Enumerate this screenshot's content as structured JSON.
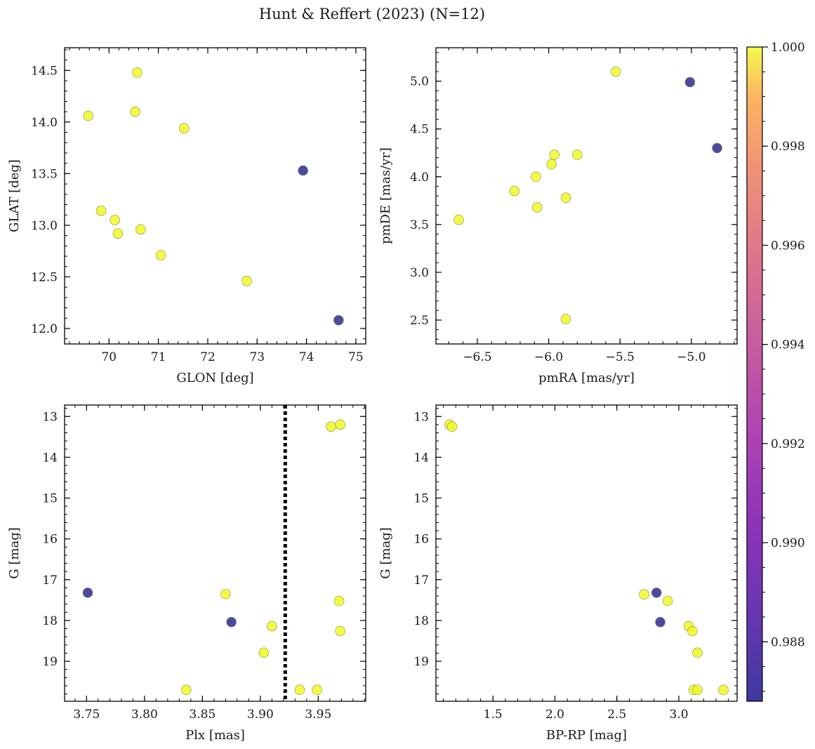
{
  "figure": {
    "title": "Hunt & Reffert (2023) (N=12)"
  },
  "colorbar": {
    "min": 0.9868,
    "max": 1.0,
    "ticks": [
      "0.988",
      "0.990",
      "0.992",
      "0.994",
      "0.996",
      "0.998",
      "1.000"
    ],
    "tick_values": [
      0.988,
      0.99,
      0.992,
      0.994,
      0.996,
      0.998,
      1.0
    ],
    "colormap": "plasma",
    "high_color": "#f0f921",
    "low_color": "#2c2c8c"
  },
  "chart_data": [
    {
      "type": "scatter",
      "id": "glon-glat",
      "xlabel": "GLON [deg]",
      "ylabel": "GLAT [deg]",
      "xlim": [
        69.1,
        75.2
      ],
      "ylim": [
        11.85,
        14.72
      ],
      "xticks": [
        70,
        71,
        72,
        73,
        74,
        75
      ],
      "yticks": [
        12.0,
        12.5,
        13.0,
        13.5,
        14.0,
        14.5
      ],
      "ytick_labels": [
        "12.0",
        "12.5",
        "13.0",
        "13.5",
        "14.0",
        "14.5"
      ],
      "y_inverted": false,
      "points": [
        {
          "x": 69.58,
          "y": 14.06,
          "p": 1.0
        },
        {
          "x": 70.57,
          "y": 14.48,
          "p": 1.0
        },
        {
          "x": 70.53,
          "y": 14.1,
          "p": 1.0
        },
        {
          "x": 71.52,
          "y": 13.94,
          "p": 1.0
        },
        {
          "x": 73.93,
          "y": 13.53,
          "p": 0.9868
        },
        {
          "x": 69.84,
          "y": 13.14,
          "p": 1.0
        },
        {
          "x": 70.12,
          "y": 13.05,
          "p": 1.0
        },
        {
          "x": 70.18,
          "y": 12.92,
          "p": 1.0
        },
        {
          "x": 70.64,
          "y": 12.96,
          "p": 1.0
        },
        {
          "x": 71.05,
          "y": 12.71,
          "p": 1.0
        },
        {
          "x": 72.79,
          "y": 12.46,
          "p": 1.0
        },
        {
          "x": 74.65,
          "y": 12.08,
          "p": 0.9868
        }
      ]
    },
    {
      "type": "scatter",
      "id": "pmra-pmde",
      "xlabel": "pmRA [mas/yr]",
      "ylabel": "pmDE [mas/yr]",
      "xlim": [
        -6.79,
        -4.68
      ],
      "ylim": [
        2.25,
        5.35
      ],
      "xticks": [
        -6.5,
        -6.0,
        -5.5,
        -5.0
      ],
      "xtick_labels": [
        "−6.5",
        "−6.0",
        "−5.5",
        "−5.0"
      ],
      "yticks": [
        2.5,
        3.0,
        3.5,
        4.0,
        4.5,
        5.0
      ],
      "ytick_labels": [
        "2.5",
        "3.0",
        "3.5",
        "4.0",
        "4.5",
        "5.0"
      ],
      "y_inverted": false,
      "points": [
        {
          "x": -6.63,
          "y": 3.55,
          "p": 1.0
        },
        {
          "x": -6.24,
          "y": 3.85,
          "p": 1.0
        },
        {
          "x": -6.09,
          "y": 4.0,
          "p": 1.0
        },
        {
          "x": -6.08,
          "y": 3.68,
          "p": 1.0
        },
        {
          "x": -5.98,
          "y": 4.13,
          "p": 1.0
        },
        {
          "x": -5.96,
          "y": 4.23,
          "p": 1.0
        },
        {
          "x": -5.88,
          "y": 3.78,
          "p": 1.0
        },
        {
          "x": -5.88,
          "y": 2.51,
          "p": 1.0
        },
        {
          "x": -5.8,
          "y": 4.23,
          "p": 1.0
        },
        {
          "x": -5.53,
          "y": 5.1,
          "p": 1.0
        },
        {
          "x": -5.01,
          "y": 4.99,
          "p": 0.9868
        },
        {
          "x": -4.82,
          "y": 4.3,
          "p": 0.9868
        }
      ]
    },
    {
      "type": "scatter",
      "id": "plx-g",
      "xlabel": "Plx [mas]",
      "ylabel": "G [mag]",
      "xlim": [
        3.731,
        3.991
      ],
      "ylim": [
        12.72,
        19.98
      ],
      "xticks": [
        3.75,
        3.8,
        3.85,
        3.9,
        3.95
      ],
      "xtick_labels": [
        "3.75",
        "3.80",
        "3.85",
        "3.90",
        "3.95"
      ],
      "yticks": [
        13,
        14,
        15,
        16,
        17,
        18,
        19
      ],
      "y_inverted": true,
      "vline": {
        "x": 3.9215,
        "style": "dotted"
      },
      "points": [
        {
          "x": 3.751,
          "y": 17.32,
          "p": 0.9868
        },
        {
          "x": 3.836,
          "y": 19.7,
          "p": 1.0
        },
        {
          "x": 3.87,
          "y": 17.35,
          "p": 1.0
        },
        {
          "x": 3.875,
          "y": 18.04,
          "p": 0.9868
        },
        {
          "x": 3.903,
          "y": 18.79,
          "p": 1.0
        },
        {
          "x": 3.91,
          "y": 18.14,
          "p": 1.0
        },
        {
          "x": 3.934,
          "y": 19.7,
          "p": 1.0
        },
        {
          "x": 3.949,
          "y": 19.7,
          "p": 1.0
        },
        {
          "x": 3.961,
          "y": 13.25,
          "p": 1.0
        },
        {
          "x": 3.968,
          "y": 17.52,
          "p": 1.0
        },
        {
          "x": 3.969,
          "y": 13.2,
          "p": 1.0
        },
        {
          "x": 3.969,
          "y": 18.26,
          "p": 1.0
        }
      ]
    },
    {
      "type": "scatter",
      "id": "bprp-g",
      "xlabel": "BP-RP [mag]",
      "ylabel": "G [mag]",
      "xlim": [
        1.04,
        3.47
      ],
      "ylim": [
        12.72,
        19.98
      ],
      "xticks": [
        1.5,
        2.0,
        2.5,
        3.0
      ],
      "xtick_labels": [
        "1.5",
        "2.0",
        "2.5",
        "3.0"
      ],
      "yticks": [
        13,
        14,
        15,
        16,
        17,
        18,
        19
      ],
      "y_inverted": true,
      "points": [
        {
          "x": 1.15,
          "y": 13.2,
          "p": 1.0
        },
        {
          "x": 1.17,
          "y": 13.25,
          "p": 1.0
        },
        {
          "x": 2.72,
          "y": 17.36,
          "p": 1.0
        },
        {
          "x": 2.82,
          "y": 17.32,
          "p": 0.9868
        },
        {
          "x": 2.85,
          "y": 18.04,
          "p": 0.9868
        },
        {
          "x": 2.91,
          "y": 17.52,
          "p": 1.0
        },
        {
          "x": 3.08,
          "y": 18.14,
          "p": 1.0
        },
        {
          "x": 3.11,
          "y": 18.26,
          "p": 1.0
        },
        {
          "x": 3.15,
          "y": 18.79,
          "p": 1.0
        },
        {
          "x": 3.12,
          "y": 19.7,
          "p": 1.0
        },
        {
          "x": 3.15,
          "y": 19.7,
          "p": 1.0
        },
        {
          "x": 3.36,
          "y": 19.7,
          "p": 1.0
        }
      ]
    }
  ]
}
